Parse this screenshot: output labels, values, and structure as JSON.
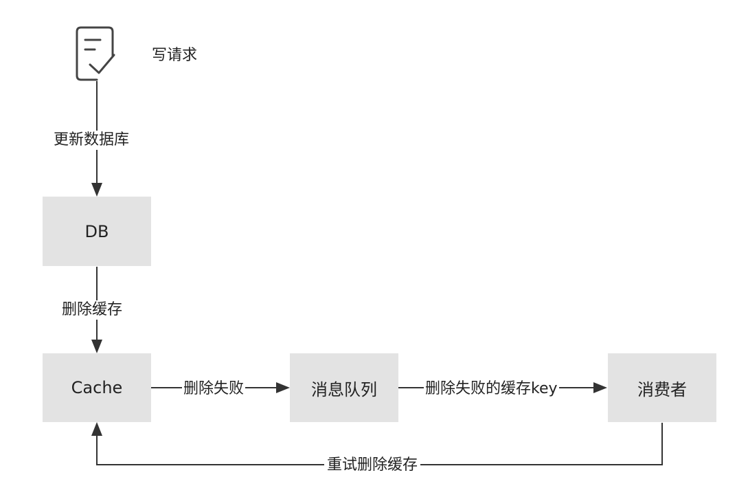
{
  "diagram": {
    "start": {
      "icon": "document-check-icon",
      "label": "写请求"
    },
    "nodes": {
      "db": "DB",
      "cache": "Cache",
      "mq": "消息队列",
      "consumer": "消费者"
    },
    "edges": {
      "update_db": "更新数据库",
      "delete_cache": "删除缓存",
      "delete_failed": "删除失败",
      "failed_key": "删除失败的缓存key",
      "retry_delete": "重试删除缓存"
    },
    "colors": {
      "node_fill": "#e3e3e3",
      "line": "#333333",
      "icon": "#444444"
    }
  }
}
